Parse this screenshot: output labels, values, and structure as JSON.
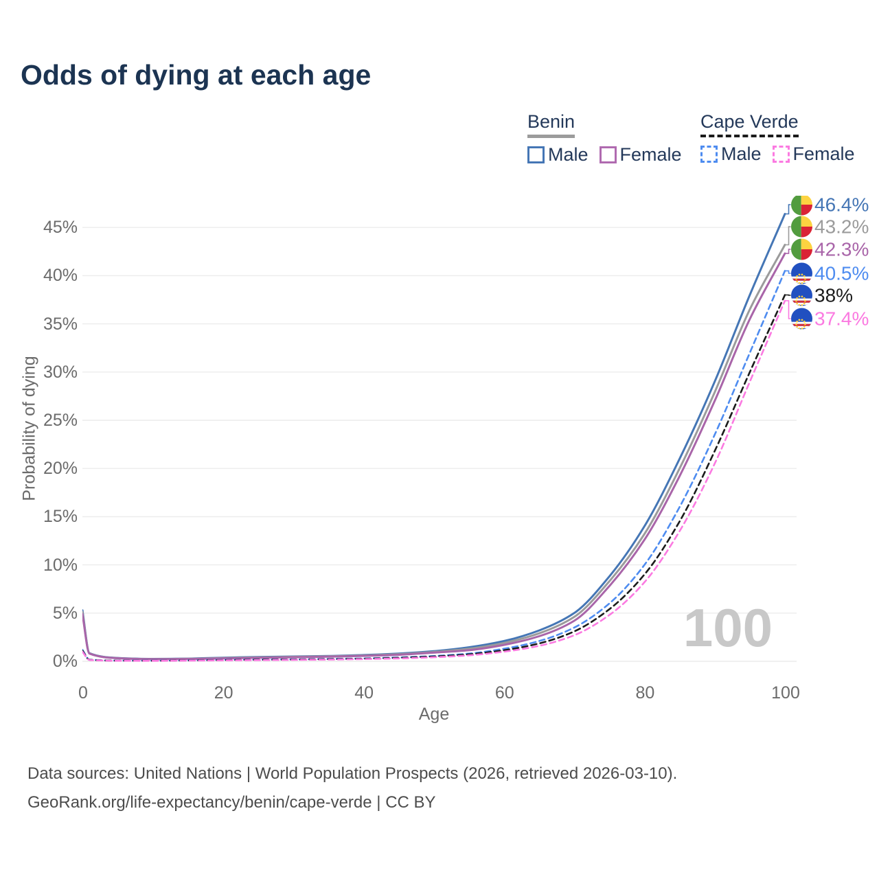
{
  "title": "Odds of dying at each age",
  "watermark": "100",
  "legend": {
    "groups": [
      {
        "name": "Benin",
        "line_style": "solid",
        "underline_color": "#9b9b9b",
        "items": [
          {
            "label": "Male",
            "color": "#4576b5"
          },
          {
            "label": "Female",
            "color": "#b06ab0"
          }
        ]
      },
      {
        "name": "Cape Verde",
        "line_style": "dashed",
        "underline_color": "#1b1b1b",
        "items": [
          {
            "label": "Male",
            "color": "#4e8cf0"
          },
          {
            "label": "Female",
            "color": "#fb7ae1"
          }
        ]
      }
    ]
  },
  "chart_data": {
    "type": "line",
    "title": "Odds of dying at each age",
    "xlabel": "Age",
    "ylabel": "Probability of dying",
    "xlim": [
      0,
      100
    ],
    "ylim": [
      0,
      48
    ],
    "x_ticks": [
      "0",
      "20",
      "40",
      "60",
      "80",
      "100"
    ],
    "y_ticks": [
      "0%",
      "5%",
      "10%",
      "15%",
      "20%",
      "25%",
      "30%",
      "35%",
      "40%",
      "45%"
    ],
    "grid": "horizontal",
    "legend_position": "top-right",
    "ages": [
      0,
      1,
      5,
      10,
      15,
      20,
      25,
      30,
      35,
      40,
      45,
      50,
      55,
      60,
      65,
      70,
      75,
      80,
      85,
      90,
      95,
      100
    ],
    "series": [
      {
        "name": "Benin Male",
        "country": "Benin",
        "sex": "Male",
        "color": "#4576b5",
        "dash": false,
        "flag": "benin",
        "end_label": "46.4%",
        "label_color": "#4576b5",
        "values": [
          5.3,
          0.85,
          0.35,
          0.25,
          0.28,
          0.38,
          0.45,
          0.5,
          0.55,
          0.65,
          0.8,
          1.05,
          1.45,
          2.1,
          3.2,
          5.0,
          8.8,
          14.0,
          21.0,
          29.0,
          38.0,
          46.4
        ]
      },
      {
        "name": "Benin Both sexes",
        "country": "Benin",
        "sex": "Both",
        "color": "#9b9b9b",
        "dash": false,
        "flag": "benin",
        "end_label": "43.2%",
        "label_color": "#9b9b9b",
        "values": [
          5.1,
          0.82,
          0.33,
          0.23,
          0.26,
          0.34,
          0.4,
          0.46,
          0.52,
          0.6,
          0.74,
          0.97,
          1.3,
          1.9,
          2.9,
          4.6,
          8.3,
          13.2,
          20.0,
          27.9,
          36.5,
          43.2
        ]
      },
      {
        "name": "Benin Female",
        "country": "Benin",
        "sex": "Female",
        "color": "#a965a9",
        "dash": false,
        "flag": "benin",
        "end_label": "42.3%",
        "label_color": "#a965a9",
        "values": [
          4.9,
          0.8,
          0.32,
          0.22,
          0.24,
          0.3,
          0.36,
          0.42,
          0.48,
          0.56,
          0.68,
          0.9,
          1.15,
          1.7,
          2.6,
          4.2,
          7.8,
          12.6,
          19.2,
          27.0,
          35.5,
          42.3
        ]
      },
      {
        "name": "Cape Verde Male",
        "country": "Cape Verde",
        "sex": "Male",
        "color": "#4e8cf0",
        "dash": true,
        "flag": "cape-verde",
        "end_label": "40.5%",
        "label_color": "#4e8cf0",
        "values": [
          1.2,
          0.18,
          0.08,
          0.07,
          0.1,
          0.15,
          0.18,
          0.2,
          0.25,
          0.3,
          0.4,
          0.55,
          0.8,
          1.3,
          2.1,
          3.5,
          6.0,
          10.0,
          16.0,
          23.5,
          32.0,
          40.5
        ]
      },
      {
        "name": "Cape Verde Both sexes",
        "country": "Cape Verde",
        "sex": "Both",
        "color": "#1b1b1b",
        "dash": true,
        "flag": "cape-verde",
        "end_label": "38%",
        "label_color": "#1b1b1b",
        "values": [
          1.1,
          0.16,
          0.07,
          0.06,
          0.09,
          0.13,
          0.16,
          0.18,
          0.22,
          0.27,
          0.36,
          0.5,
          0.72,
          1.15,
          1.85,
          3.1,
          5.4,
          9.0,
          14.5,
          21.8,
          30.0,
          38.0
        ]
      },
      {
        "name": "Cape Verde Female",
        "country": "Cape Verde",
        "sex": "Female",
        "color": "#fb7ae1",
        "dash": true,
        "flag": "cape-verde",
        "end_label": "37.4%",
        "label_color": "#fb7ae1",
        "values": [
          1.0,
          0.14,
          0.06,
          0.05,
          0.07,
          0.1,
          0.12,
          0.15,
          0.18,
          0.23,
          0.3,
          0.42,
          0.62,
          1.0,
          1.6,
          2.7,
          4.8,
          8.2,
          13.5,
          20.5,
          29.0,
          37.4
        ]
      }
    ]
  },
  "flag_colors": {
    "benin": {
      "green": "#529c3f",
      "yellow": "#fdd341",
      "red": "#da2335"
    },
    "cape_verde": {
      "blue": "#2150c0",
      "white": "#ffffff",
      "red": "#d42e3a",
      "star": "#ffcf3f"
    }
  },
  "colors": {
    "title": "#1c3452",
    "axis_text": "#6b6b6b",
    "grid": "#ececec",
    "watermark": "#c8c8c8",
    "footer_text": "#4c4c4c",
    "background": "#ffffff"
  },
  "footer": {
    "line1": "Data sources: United Nations | World Population Prospects (2026, retrieved 2026-03-10).",
    "line2": "GeoRank.org/life-expectancy/benin/cape-verde | CC BY"
  }
}
